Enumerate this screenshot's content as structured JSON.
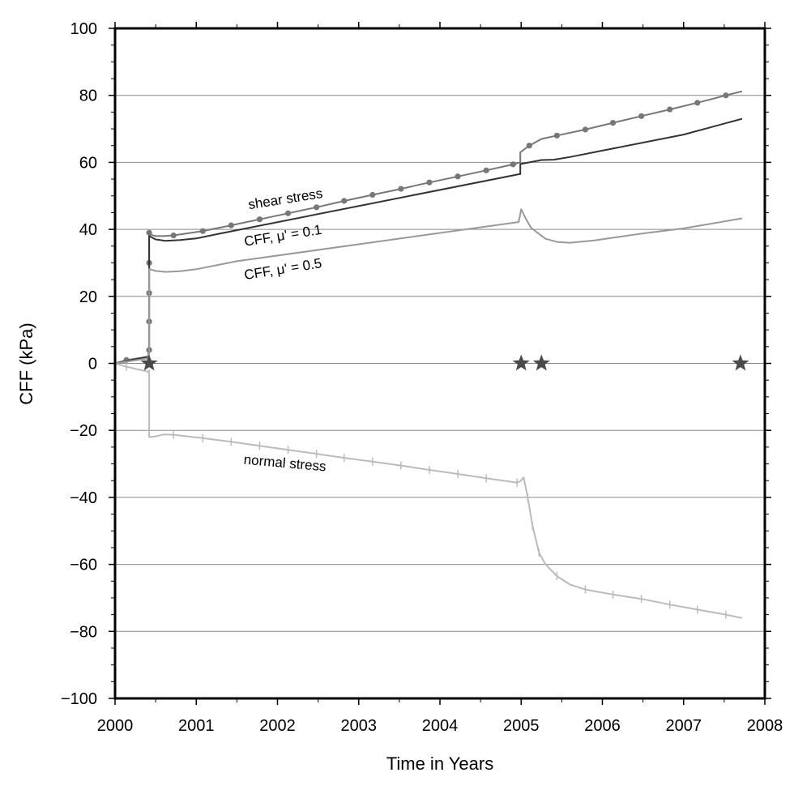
{
  "chart_data": {
    "type": "line",
    "title": "",
    "xlabel": "Time in Years",
    "ylabel": "CFF (kPa)",
    "xlim": [
      2000,
      2008
    ],
    "ylim": [
      -100,
      100
    ],
    "xticks": [
      2000,
      2001,
      2002,
      2003,
      2004,
      2005,
      2006,
      2007,
      2008
    ],
    "yticks": [
      -100,
      -80,
      -60,
      -40,
      -20,
      0,
      20,
      40,
      60,
      80,
      100
    ],
    "grid": "horizontal",
    "annotations": [
      {
        "text": "shear stress",
        "x": 2001.65,
        "y": 46,
        "rotate": -9
      },
      {
        "text": "CFF, μ' = 0.1",
        "x": 2001.6,
        "y": 35,
        "rotate": -9
      },
      {
        "text": "CFF, μ' = 0.5",
        "x": 2001.6,
        "y": 25,
        "rotate": -9
      },
      {
        "text": "normal stress",
        "x": 2001.58,
        "y": -30,
        "rotate": 5
      }
    ],
    "stars": [
      {
        "x": 2000.42,
        "y": 0
      },
      {
        "x": 2005.0,
        "y": 0
      },
      {
        "x": 2005.25,
        "y": 0
      },
      {
        "x": 2007.7,
        "y": 0
      }
    ],
    "series": [
      {
        "key": "shear",
        "color": "#777777",
        "marker": "circle",
        "x": [
          2000.0,
          2000.14,
          2000.41,
          2000.42,
          2000.42,
          2000.42,
          2000.42,
          2000.42,
          2000.42,
          2000.5,
          2000.6,
          2000.72,
          2001.08,
          2001.43,
          2001.78,
          2002.13,
          2002.48,
          2002.82,
          2003.17,
          2003.52,
          2003.87,
          2004.22,
          2004.57,
          2004.9,
          2004.99,
          2004.99,
          2005.1,
          2005.25,
          2005.44,
          2005.79,
          2006.13,
          2006.48,
          2006.83,
          2007.17,
          2007.52,
          2007.72
        ],
        "y": [
          0,
          1,
          2,
          4,
          12.5,
          21,
          30,
          39,
          38.5,
          38,
          38,
          38.2,
          39.5,
          41.2,
          43,
          44.8,
          46.6,
          48.5,
          50.3,
          52.1,
          54,
          55.8,
          57.6,
          59.4,
          60,
          63,
          65,
          67,
          68,
          69.8,
          71.8,
          73.8,
          75.8,
          77.8,
          80,
          81.2
        ],
        "marker_x": [
          2000.14,
          2000.42,
          2000.42,
          2000.42,
          2000.42,
          2000.42,
          2000.72,
          2001.08,
          2001.43,
          2001.78,
          2002.13,
          2002.48,
          2002.82,
          2003.17,
          2003.52,
          2003.87,
          2004.22,
          2004.57,
          2004.9,
          2005.1,
          2005.44,
          2005.79,
          2006.13,
          2006.48,
          2006.83,
          2007.17,
          2007.52
        ]
      },
      {
        "key": "cff01",
        "color": "#333333",
        "marker": "none",
        "x": [
          2000.0,
          2000.41,
          2000.42,
          2000.42,
          2000.5,
          2000.62,
          2000.8,
          2001.0,
          2001.3,
          2004.98,
          2004.99,
          2004.99,
          2005.1,
          2005.25,
          2005.4,
          2005.6,
          2006.0,
          2007.0,
          2007.72
        ],
        "y": [
          0,
          2,
          4,
          38,
          37,
          36.6,
          36.8,
          37.3,
          38.8,
          56.5,
          56.5,
          59.5,
          60,
          60.7,
          60.8,
          61.6,
          63.5,
          68.3,
          73
        ],
        "marker_x": []
      },
      {
        "key": "cff05",
        "color": "#999999",
        "marker": "none",
        "x": [
          2000.0,
          2000.41,
          2000.42,
          2000.42,
          2000.5,
          2000.62,
          2000.8,
          2001.0,
          2001.5,
          2004.97,
          2005.0,
          2005.05,
          2005.12,
          2005.2,
          2005.3,
          2005.45,
          2005.6,
          2005.9,
          2006.5,
          2007.0,
          2007.72
        ],
        "y": [
          0,
          1.5,
          3,
          28.2,
          27.6,
          27.3,
          27.5,
          28.1,
          30.5,
          42.2,
          46,
          43.5,
          40.5,
          39,
          37.2,
          36.2,
          36,
          36.7,
          38.8,
          40.3,
          43.3
        ],
        "marker_x": []
      },
      {
        "key": "normal",
        "color": "#bbbbbb",
        "marker": "tick",
        "x": [
          2000.0,
          2000.14,
          2000.41,
          2000.42,
          2000.42,
          2000.42,
          2000.5,
          2000.6,
          2000.72,
          2001.08,
          2001.43,
          2001.78,
          2002.13,
          2002.48,
          2002.82,
          2003.17,
          2003.52,
          2003.87,
          2004.22,
          2004.57,
          2004.95,
          2004.99,
          2005.03,
          2005.08,
          2005.14,
          2005.22,
          2005.3,
          2005.44,
          2005.6,
          2005.79,
          2006.13,
          2006.48,
          2006.83,
          2007.17,
          2007.52,
          2007.72
        ],
        "y": [
          0,
          -1,
          -2.5,
          -3,
          -12,
          -22,
          -21.8,
          -21.2,
          -21.3,
          -22.3,
          -23.4,
          -24.6,
          -25.8,
          -27,
          -28.2,
          -29.3,
          -30.5,
          -31.8,
          -33,
          -34.3,
          -35.6,
          -35.2,
          -34,
          -40,
          -48.5,
          -56.5,
          -60,
          -63.5,
          -66,
          -67.5,
          -69,
          -70.3,
          -72,
          -73.5,
          -75,
          -76
        ],
        "marker_x": [
          2000.14,
          2000.42,
          2000.42,
          2000.72,
          2001.08,
          2001.43,
          2001.78,
          2002.13,
          2002.48,
          2002.82,
          2003.17,
          2003.52,
          2003.87,
          2004.22,
          2004.57,
          2004.95,
          2005.08,
          2005.14,
          2005.22,
          2005.44,
          2005.79,
          2006.13,
          2006.48,
          2006.83,
          2007.17,
          2007.52
        ]
      }
    ]
  }
}
